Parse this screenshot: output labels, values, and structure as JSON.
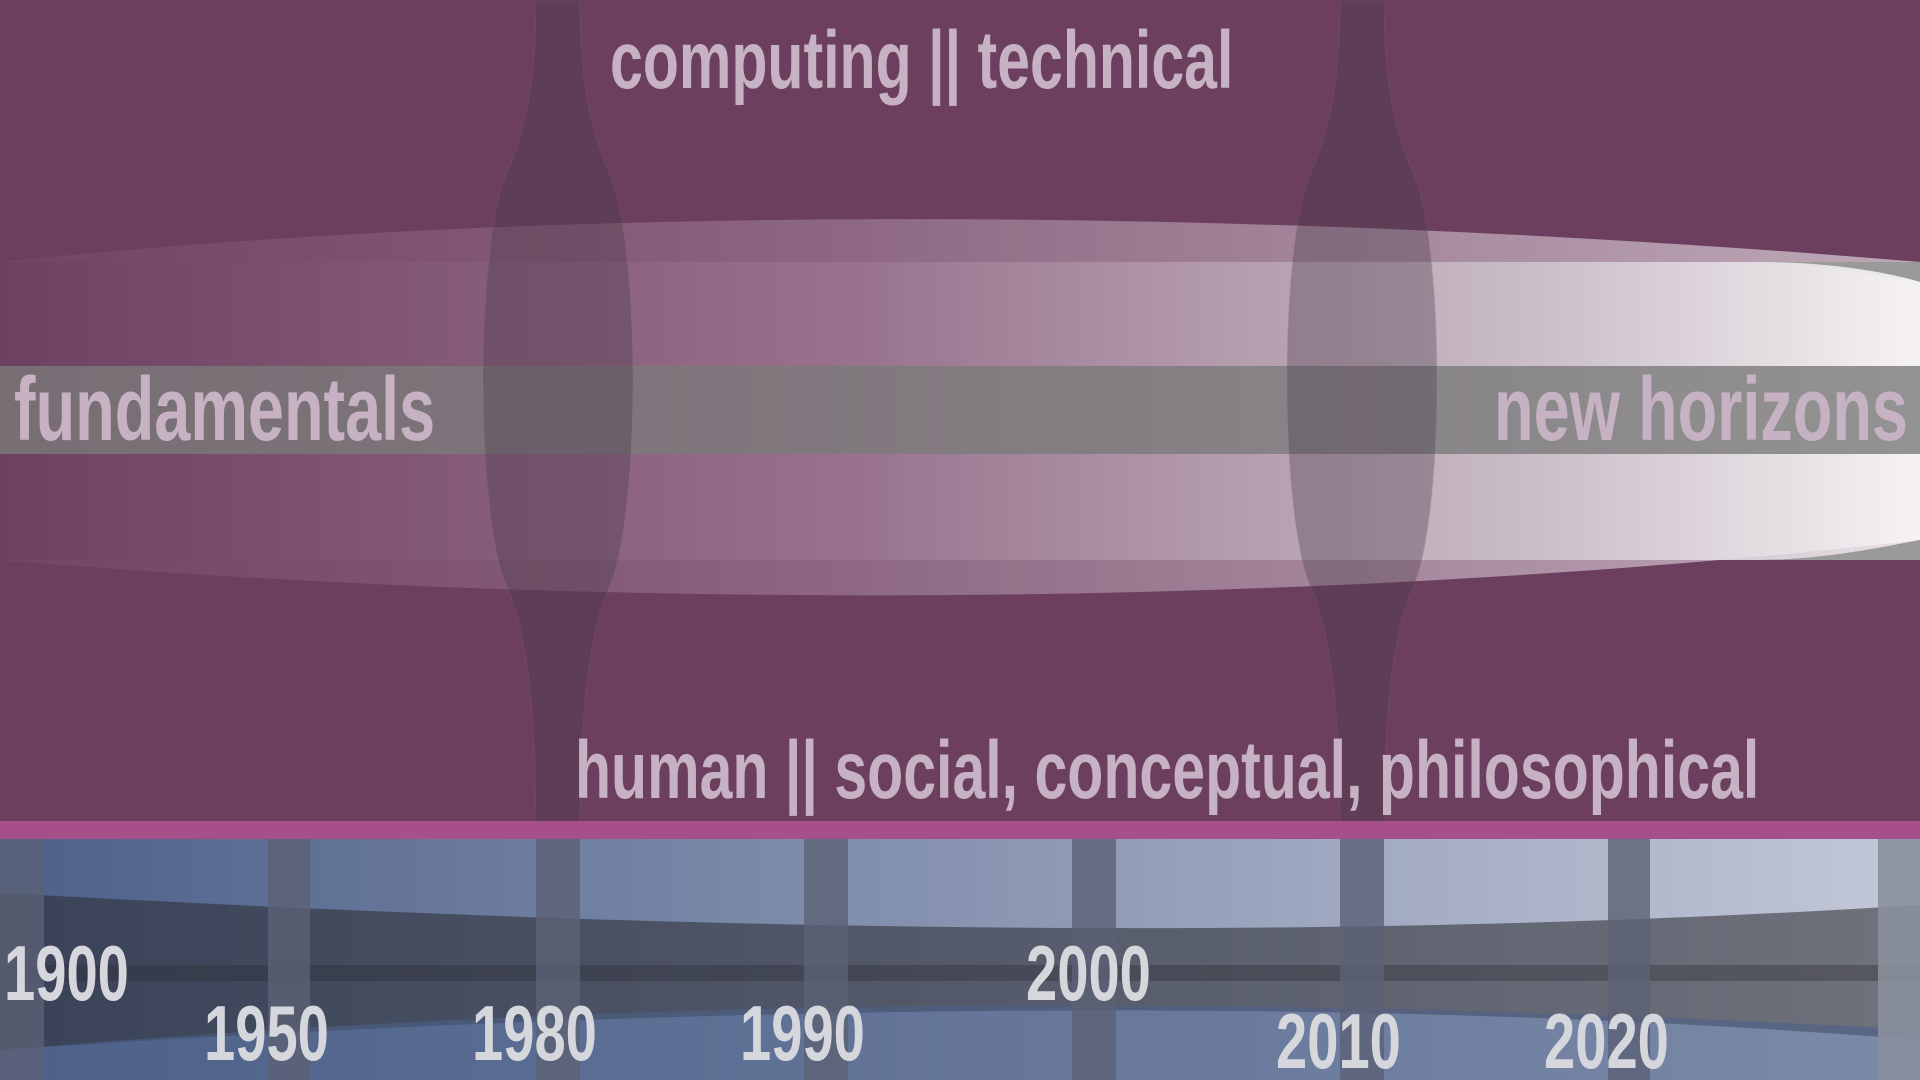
{
  "labels": {
    "top": "computing || technical",
    "bottom": "human || social, conceptual, philosophical",
    "left": "fundamentals",
    "right": "new horizons"
  },
  "years": [
    "1900",
    "1950",
    "1980",
    "1990",
    "2000",
    "2010",
    "2020"
  ],
  "colors": {
    "background": "#6c3f5e",
    "strip": "#a64f8a",
    "timeline_start": "#4c6089",
    "timeline_end": "#c3c8d8",
    "band_start": "#6c3f5e",
    "band_end": "#ffffff",
    "label_text": "#c7b2c4",
    "year_text": "#d5d7dd"
  }
}
